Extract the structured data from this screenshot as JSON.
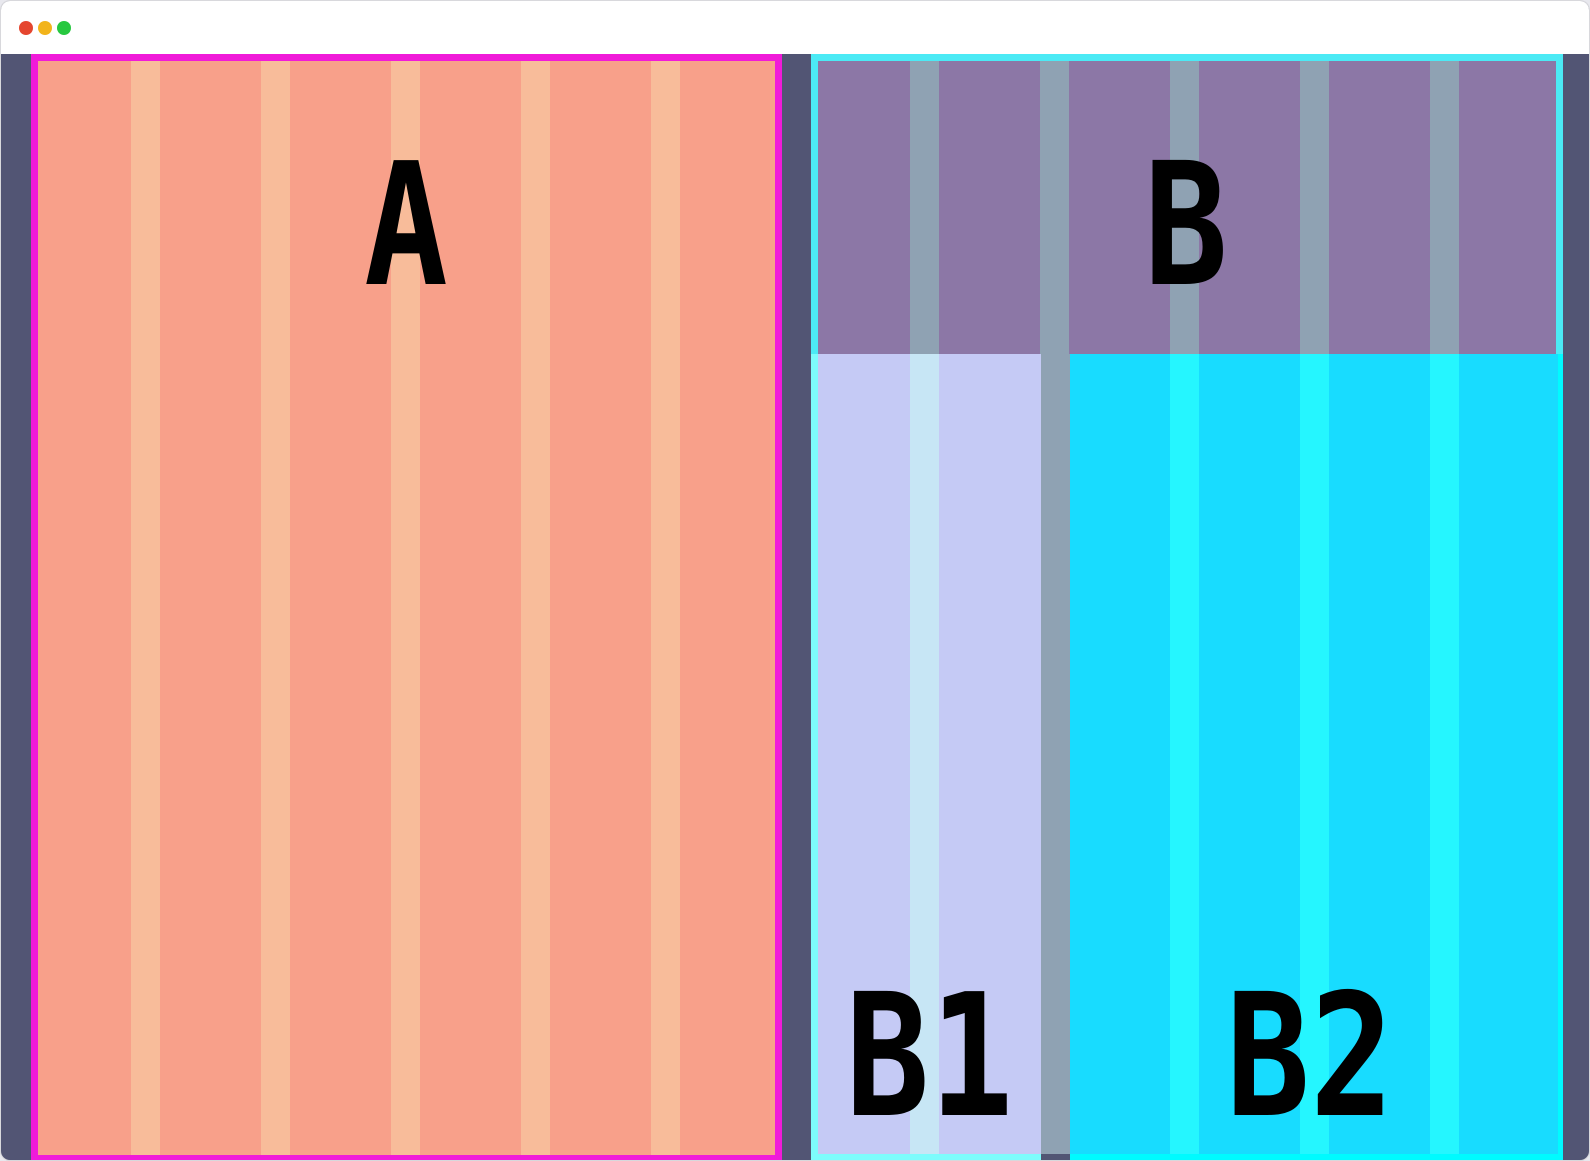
{
  "window": {
    "controls": [
      {
        "name": "close",
        "color": "#e5462f"
      },
      {
        "name": "minimize",
        "color": "#f2b41b"
      },
      {
        "name": "maximize",
        "color": "#27c840"
      }
    ]
  },
  "colors": {
    "page_bg": "#525574",
    "area_a_fill": "#f8a08a",
    "area_a_border": "#f01bd9",
    "area_a_gutter": "#f8bc9a",
    "area_a_gutter_edge": "#f067d8",
    "area_b_fill": "#8c77a6",
    "area_b_border": "#4ceaf5",
    "area_b_gutter": "#8fa2b3",
    "area_b1_fill": "#c5caf5",
    "area_b1_gutter": "#c7e6f5",
    "area_b1_border": "#7dfcfc",
    "area_b2_fill": "#18dcff",
    "area_b2_gutter": "#25f6ff",
    "area_b2_border": "#00fbff",
    "shared_gutter": "#8fa2b3"
  },
  "areas": {
    "a": {
      "label": "A"
    },
    "b": {
      "label": "B"
    },
    "b1": {
      "label": "B1"
    },
    "b2": {
      "label": "B2"
    }
  }
}
